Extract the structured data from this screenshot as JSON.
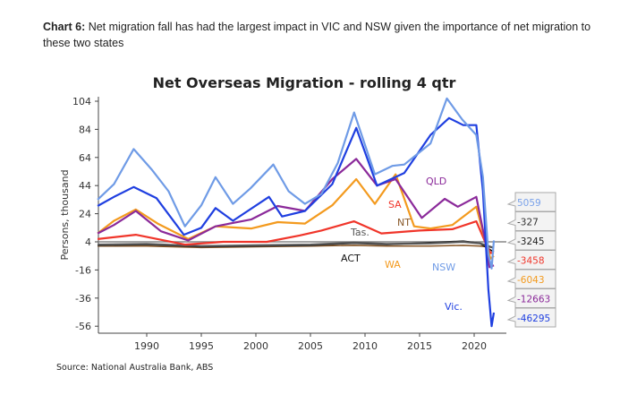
{
  "caption": {
    "prefix": "Chart 6:",
    "text": " Net migration fall has had the largest impact in VIC and NSW given the importance of net migration to these two states"
  },
  "chart_data": {
    "type": "line",
    "title": "Net Overseas Migration - rolling 4 qtr",
    "ylabel": "Persons, thousand",
    "xlabel": "",
    "xlim": [
      1985.5,
      2022
    ],
    "ylim": [
      -60,
      108
    ],
    "y_ticks": [
      "104",
      "84",
      "64",
      "44",
      "24",
      "4",
      "-16",
      "-36",
      "-56"
    ],
    "x_ticks": [
      "1990",
      "1995",
      "2000",
      "2005",
      "2010",
      "2015",
      "2020"
    ],
    "grid": false,
    "source": "Source: National Australia Bank, ABS",
    "series": [
      {
        "name": "NSW",
        "color": "#6f9be6",
        "x": [
          1985.5,
          1987,
          1988.8,
          1990.5,
          1992,
          1993.5,
          1995,
          1996.3,
          1997.9,
          1999.5,
          2001.6,
          2003,
          2004.5,
          2006,
          2007.5,
          2009,
          2010.9,
          2012.5,
          2013.6,
          2016,
          2017.5,
          2018.9,
          2020.2,
          2020.8,
          2021.3,
          2021.6,
          2021.8
        ],
        "y": [
          34,
          45,
          70,
          55,
          40,
          15,
          30,
          50,
          31,
          42,
          59,
          40,
          31,
          38,
          60,
          96,
          52,
          58,
          59,
          74,
          106,
          91,
          80,
          50,
          -5,
          -15,
          5
        ]
      },
      {
        "name": "Vic.",
        "color": "#1f3fe0",
        "x": [
          1985.5,
          1987,
          1988.8,
          1990.9,
          1993.4,
          1995,
          1996.3,
          1997.9,
          2001.2,
          2002.4,
          2004.5,
          2007,
          2009.2,
          2011.1,
          2013.6,
          2016,
          2017.7,
          2019,
          2020.2,
          2020.8,
          2021.3,
          2021.6,
          2021.8
        ],
        "y": [
          29.5,
          36,
          43,
          35,
          9,
          14,
          28,
          19,
          36,
          22,
          26,
          45,
          85,
          44,
          53,
          80,
          92,
          87,
          87,
          40,
          -30,
          -56,
          -46.3
        ]
      },
      {
        "name": "QLD",
        "color": "#8b2a9a",
        "x": [
          1985.5,
          1987,
          1989,
          1991.3,
          1993.8,
          1996.3,
          1999.6,
          2002,
          2004.5,
          2007,
          2009.2,
          2011.1,
          2012.8,
          2015.2,
          2017.3,
          2018.5,
          2020.2,
          2021,
          2021.4,
          2021.8
        ],
        "y": [
          10,
          16,
          26,
          11.5,
          5,
          15,
          20,
          29.5,
          26,
          48.6,
          63,
          44,
          48.6,
          21,
          34.6,
          29,
          36,
          5,
          -14,
          -12.7
        ]
      },
      {
        "name": "WA",
        "color": "#f39a1e",
        "x": [
          1985.5,
          1987,
          1989,
          1991,
          1993.8,
          1996.3,
          1999.6,
          2002,
          2004.5,
          2007,
          2009.2,
          2010.9,
          2012.8,
          2014.5,
          2016,
          2018,
          2020.2,
          2021,
          2021.5,
          2021.8
        ],
        "y": [
          10,
          19,
          27,
          17,
          6,
          15,
          13.5,
          18,
          17,
          30,
          48.6,
          31,
          52,
          15,
          13.5,
          16,
          29,
          5,
          -8,
          -6
        ]
      },
      {
        "name": "SA",
        "color": "#f0352a",
        "x": [
          1985.5,
          1989,
          1993.5,
          1997,
          2001,
          2004,
          2006,
          2009,
          2011.5,
          2015,
          2018,
          2020.2,
          2021,
          2021.5,
          2021.8
        ],
        "y": [
          6,
          9,
          2,
          4,
          4,
          8.5,
          12,
          18.6,
          10,
          12,
          13,
          18.6,
          4,
          -4,
          -3.5
        ]
      },
      {
        "name": "Tas.",
        "color": "#555555",
        "x": [
          1985.5,
          1990,
          1995,
          2000,
          2005,
          2009,
          2012,
          2016,
          2019,
          2020.5,
          2021.8
        ],
        "y": [
          2,
          2.5,
          1,
          1.5,
          2,
          3.5,
          2.5,
          3,
          4,
          3,
          -0.3
        ]
      },
      {
        "name": "ACT",
        "color": "#111111",
        "x": [
          1985.5,
          1990,
          1995,
          2000,
          2005,
          2009,
          2012,
          2016,
          2019,
          2020.5,
          2021.8
        ],
        "y": [
          1.5,
          2,
          0.5,
          1,
          1.5,
          3,
          2,
          3.5,
          4.5,
          3,
          -3.2
        ]
      },
      {
        "name": "NT",
        "color": "#8a5a2b",
        "x": [
          1985.5,
          1990,
          1995,
          2000,
          2005,
          2009,
          2012,
          2016,
          2019,
          2020.5,
          2021.8
        ],
        "y": [
          1,
          1,
          0,
          0.5,
          1,
          1.5,
          1,
          1,
          1.5,
          1,
          0
        ]
      }
    ],
    "series_labels": [
      {
        "text": "QLD",
        "color": "#8b2a9a"
      },
      {
        "text": "SA",
        "color": "#f0352a"
      },
      {
        "text": "NT",
        "color": "#8a5a2b"
      },
      {
        "text": "Tas.",
        "color": "#555555"
      },
      {
        "text": "ACT",
        "color": "#111111"
      },
      {
        "text": "WA",
        "color": "#f39a1e"
      },
      {
        "text": "NSW",
        "color": "#6f9be6"
      },
      {
        "text": "Vic.",
        "color": "#1f3fe0"
      }
    ],
    "end_values": [
      {
        "text": "5059",
        "color": "#7aa2ea"
      },
      {
        "text": "-327",
        "color": "#333333"
      },
      {
        "text": "-3245",
        "color": "#222222"
      },
      {
        "text": "-3458",
        "color": "#f0352a"
      },
      {
        "text": "-6043",
        "color": "#f39a1e"
      },
      {
        "text": "-12663",
        "color": "#8b2a9a"
      },
      {
        "text": "-46295",
        "color": "#1f3fe0"
      }
    ]
  }
}
